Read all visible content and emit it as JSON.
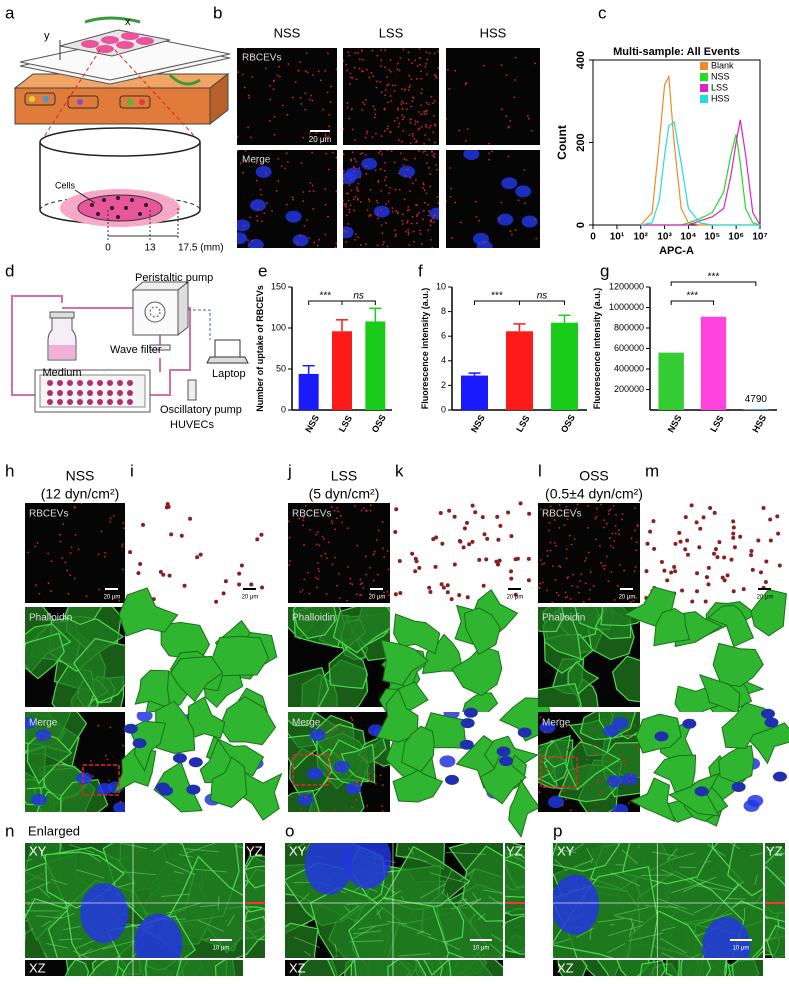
{
  "panel_labels": [
    "a",
    "b",
    "c",
    "d",
    "e",
    "f",
    "g",
    "h",
    "i",
    "j",
    "k",
    "l",
    "m",
    "n",
    "o",
    "p"
  ],
  "a": {
    "axes": [
      "x",
      "y"
    ],
    "cells": "Cells",
    "scale": [
      "0",
      "13",
      "17.5 (mm)"
    ]
  },
  "b": {
    "columns": [
      "NSS",
      "LSS",
      "HSS"
    ],
    "rows": [
      "RBCEVs",
      "Merge"
    ],
    "scale_bar": "20 μm"
  },
  "d": {
    "labels": [
      "Peristaltic pump",
      "Medium",
      "Wave filter",
      "Laptop",
      "Oscillatory pump",
      "HUVECs"
    ]
  },
  "h_to_m": {
    "conditions": [
      {
        "name": "NSS",
        "shear": "(12 dyn/cm²)"
      },
      {
        "name": "LSS",
        "shear": "(5 dyn/cm²)"
      },
      {
        "name": "OSS",
        "shear": "(0.5±4 dyn/cm²)"
      }
    ],
    "rows": [
      "RBCEVs",
      "Phalloidin",
      "Merge"
    ],
    "scale_bar": "20 μm"
  },
  "n_to_p": {
    "title": "Enlarged",
    "planes": [
      "XY",
      "YZ",
      "XZ"
    ],
    "scale_bar": "10 μm"
  },
  "chart_data": [
    {
      "type": "line",
      "title": "Multi-sample: All Events",
      "xlabel": "APC-A",
      "ylabel": "Count",
      "xscale": "asinh",
      "x": [
        100,
        300,
        600,
        1000,
        1500,
        2500,
        5000,
        10000,
        30000,
        100000,
        300000,
        600000,
        1000000,
        1500000,
        2500000,
        5000000,
        10000000
      ],
      "series": [
        {
          "name": "Blank",
          "color": "#f08a24",
          "values": [
            0,
            30,
            200,
            340,
            360,
            200,
            40,
            5,
            0,
            0,
            0,
            0,
            0,
            0,
            0,
            0,
            0
          ]
        },
        {
          "name": "NSS",
          "color": "#22dd22",
          "values": [
            0,
            0,
            0,
            0,
            0,
            0,
            0,
            5,
            15,
            30,
            80,
            170,
            220,
            150,
            40,
            5,
            0
          ]
        },
        {
          "name": "LSS",
          "color": "#dd22cc",
          "values": [
            0,
            0,
            0,
            0,
            0,
            0,
            0,
            0,
            10,
            20,
            40,
            120,
            200,
            255,
            170,
            30,
            0
          ]
        },
        {
          "name": "HSS",
          "color": "#22dddd",
          "values": [
            0,
            5,
            60,
            170,
            240,
            250,
            150,
            40,
            5,
            0,
            0,
            0,
            0,
            0,
            0,
            0,
            0
          ]
        }
      ],
      "xlim": [
        0,
        10000000
      ],
      "xticks": [
        0,
        {
          "value": 10,
          "label": "10¹"
        },
        {
          "value": 100,
          "label": "10²"
        },
        {
          "value": 1000,
          "label": "10³"
        },
        {
          "value": 10000,
          "label": "10⁴"
        },
        {
          "value": 100000,
          "label": "10⁵"
        },
        {
          "value": 1000000,
          "label": "10⁶"
        },
        {
          "value": 10000000,
          "label": "10⁷"
        }
      ],
      "ylim": [
        0,
        400
      ],
      "yticks": [
        0,
        200,
        400
      ],
      "legend": "upper right"
    },
    {
      "type": "bar",
      "ylabel": "Number of uptake of RBCEVs",
      "categories": [
        "NSS",
        "LSS",
        "OSS"
      ],
      "values": [
        44,
        96,
        108
      ],
      "errors": [
        10,
        14,
        16
      ],
      "colors": [
        "#1a1aff",
        "#ff1a1a",
        "#1acc1a"
      ],
      "ylim": [
        0,
        150
      ],
      "yticks": [
        0,
        50,
        100,
        150
      ],
      "significance": [
        {
          "from": 0,
          "to": 1,
          "label": "***"
        },
        {
          "from": 1,
          "to": 2,
          "label": "ns"
        }
      ]
    },
    {
      "type": "bar",
      "ylabel": "Fluorescence intensity (a.u.)",
      "categories": [
        "NSS",
        "LSS",
        "OSS"
      ],
      "values": [
        2.8,
        6.4,
        7.1
      ],
      "errors": [
        0.2,
        0.6,
        0.6
      ],
      "colors": [
        "#1a1aff",
        "#ff1a1a",
        "#1acc1a"
      ],
      "ylim": [
        0,
        10
      ],
      "yticks": [
        0,
        2,
        4,
        6,
        8,
        10
      ],
      "significance": [
        {
          "from": 0,
          "to": 1,
          "label": "***"
        },
        {
          "from": 1,
          "to": 2,
          "label": "ns"
        }
      ]
    },
    {
      "type": "bar",
      "ylabel": "Fluorescence intensity (a.u.)",
      "categories": [
        "NSS",
        "LSS",
        "HSS"
      ],
      "values": [
        560000,
        910000,
        4790
      ],
      "value_labels": [
        null,
        null,
        "4790"
      ],
      "colors": [
        "#33cc33",
        "#ff44dd",
        "#33dddd"
      ],
      "ylim": [
        0,
        1200000
      ],
      "yticks": [
        200000,
        400000,
        600000,
        800000,
        1000000,
        1200000
      ],
      "significance": [
        {
          "from": 0,
          "to": 1,
          "label": "***"
        },
        {
          "from": 0,
          "to": 2,
          "label": "***"
        }
      ]
    }
  ]
}
